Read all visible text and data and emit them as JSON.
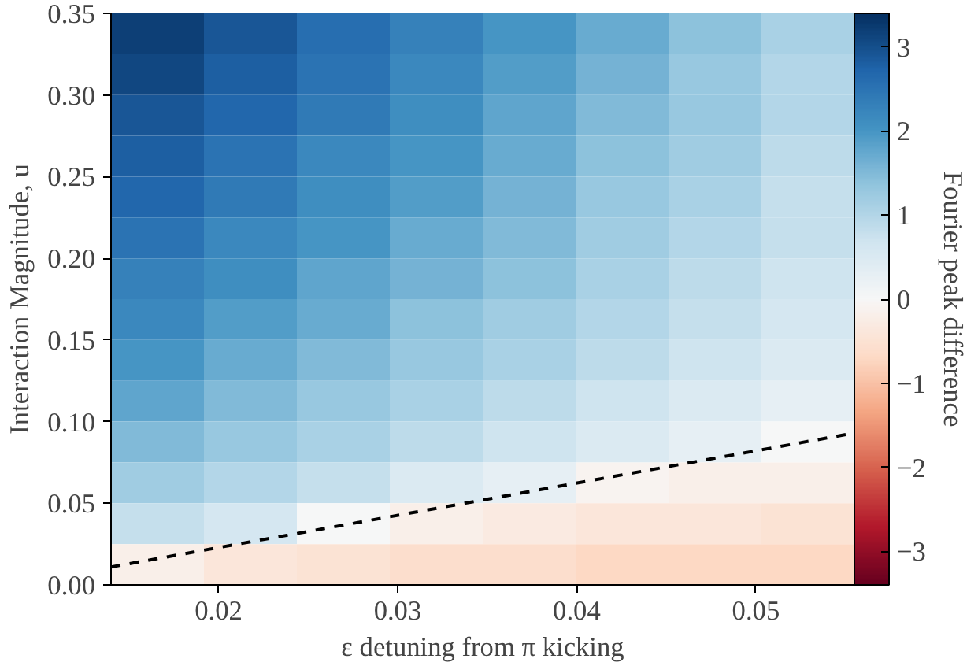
{
  "chart_data": {
    "type": "heatmap",
    "xlabel": "ε detuning from π kicking",
    "ylabel": "Interaction Magnitude, u",
    "clabel": "Fourier peak difference",
    "xlim": [
      0.014,
      0.0555
    ],
    "ylim": [
      0,
      0.35
    ],
    "xticks": [
      0.02,
      0.03,
      0.04,
      0.05
    ],
    "yticks": [
      {
        "value": 0,
        "label": "0.00"
      },
      {
        "value": 0.05,
        "label": "0.05"
      },
      {
        "value": 0.1,
        "label": "0.10"
      },
      {
        "value": 0.15,
        "label": "0.15"
      },
      {
        "value": 0.2,
        "label": "0.20"
      },
      {
        "value": 0.25,
        "label": "0.25"
      },
      {
        "value": 0.3,
        "label": "0.30"
      },
      {
        "value": 0.35,
        "label": "0.35"
      }
    ],
    "clim": [
      -3.4,
      3.4
    ],
    "cticks": [
      {
        "value": -3,
        "label": "−3"
      },
      {
        "value": -2,
        "label": "−2"
      },
      {
        "value": -1,
        "label": "−1"
      },
      {
        "value": 0,
        "label": "0"
      },
      {
        "value": 1,
        "label": "1"
      },
      {
        "value": 2,
        "label": "2"
      },
      {
        "value": 3,
        "label": "3"
      }
    ],
    "cells": [
      [
        3.2,
        2.9,
        2.6,
        2.3,
        2.0,
        1.7,
        1.4,
        1.1
      ],
      [
        3.1,
        2.8,
        2.5,
        2.2,
        1.9,
        1.6,
        1.3,
        1.0
      ],
      [
        2.9,
        2.7,
        2.4,
        2.1,
        1.8,
        1.5,
        1.3,
        1.0
      ],
      [
        2.8,
        2.5,
        2.2,
        2.0,
        1.7,
        1.4,
        1.2,
        0.9
      ],
      [
        2.7,
        2.4,
        2.1,
        1.9,
        1.6,
        1.3,
        1.1,
        0.8
      ],
      [
        2.5,
        2.2,
        2.0,
        1.7,
        1.5,
        1.2,
        1.0,
        0.8
      ],
      [
        2.3,
        2.1,
        1.8,
        1.6,
        1.4,
        1.1,
        0.9,
        0.7
      ],
      [
        2.2,
        1.9,
        1.7,
        1.4,
        1.2,
        1.0,
        0.8,
        0.6
      ],
      [
        2.0,
        1.7,
        1.5,
        1.3,
        1.1,
        0.9,
        0.7,
        0.5
      ],
      [
        1.8,
        1.5,
        1.3,
        1.1,
        0.9,
        0.7,
        0.5,
        0.3
      ],
      [
        1.5,
        1.3,
        1.1,
        0.9,
        0.7,
        0.5,
        0.3,
        0.0
      ],
      [
        1.2,
        1.0,
        0.8,
        0.5,
        0.3,
        -0.1,
        -0.2,
        -0.2
      ],
      [
        0.8,
        0.6,
        0.0,
        -0.2,
        -0.3,
        -0.4,
        -0.4,
        -0.5
      ],
      [
        -0.2,
        -0.4,
        -0.5,
        -0.6,
        -0.6,
        -0.7,
        -0.7,
        -0.7
      ]
    ],
    "series": [
      {
        "type": "line",
        "x": [
          0.014,
          0.0555
        ],
        "values": [
          0.011,
          0.093
        ],
        "color": "#000000",
        "line_style": "dashed"
      }
    ],
    "grid": false
  }
}
